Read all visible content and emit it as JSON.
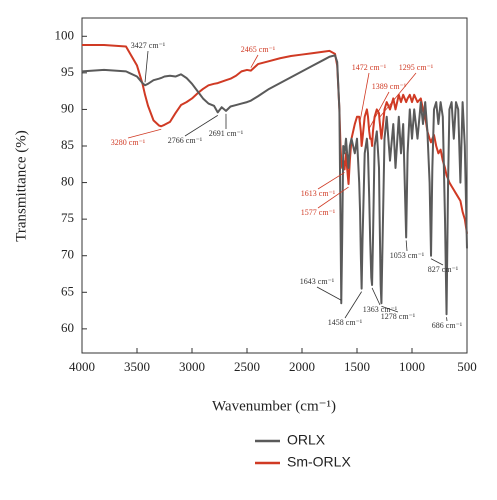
{
  "chart_data": {
    "type": "line",
    "x_label": "Wavenumber (cm⁻¹)",
    "y_label": "Transmittance (%)",
    "xlim": [
      4000,
      500
    ],
    "xticks": [
      4000,
      3500,
      3000,
      2500,
      2000,
      1500,
      1000,
      500
    ],
    "ylim": [
      56.7,
      102.5
    ],
    "yticks": [
      60,
      65,
      70,
      75,
      80,
      85,
      90,
      95,
      100
    ],
    "x": [
      4000,
      3800,
      3600,
      3500,
      3450,
      3427,
      3400,
      3350,
      3300,
      3280,
      3250,
      3200,
      3150,
      3100,
      3050,
      3000,
      2950,
      2900,
      2850,
      2800,
      2766,
      2730,
      2691,
      2650,
      2600,
      2550,
      2500,
      2465,
      2400,
      2300,
      2200,
      2100,
      2000,
      1900,
      1800,
      1750,
      1700,
      1680,
      1660,
      1650,
      1643,
      1635,
      1625,
      1613,
      1600,
      1590,
      1577,
      1565,
      1550,
      1520,
      1500,
      1480,
      1472,
      1465,
      1458,
      1450,
      1430,
      1410,
      1400,
      1389,
      1380,
      1370,
      1363,
      1355,
      1340,
      1320,
      1300,
      1295,
      1285,
      1278,
      1270,
      1250,
      1230,
      1200,
      1170,
      1150,
      1120,
      1100,
      1080,
      1053,
      1040,
      1020,
      1000,
      980,
      950,
      920,
      900,
      880,
      860,
      840,
      827,
      815,
      800,
      780,
      760,
      740,
      720,
      700,
      686,
      672,
      660,
      640,
      620,
      600,
      580,
      560,
      540,
      520,
      500
    ],
    "series": [
      {
        "name": "ORLX",
        "color": "#5a5a5a",
        "values": [
          95.2,
          95.4,
          95.2,
          94.5,
          93.6,
          93.3,
          93.5,
          94,
          94.2,
          94.3,
          94.5,
          94.6,
          94.5,
          94.8,
          94.3,
          93.5,
          92.5,
          91.5,
          90.8,
          90.5,
          89.6,
          90.3,
          89.8,
          90.4,
          90.6,
          90.8,
          91,
          91.2,
          91.8,
          92.8,
          93.6,
          94.4,
          95.2,
          96,
          96.8,
          97.2,
          97.4,
          96.5,
          90,
          75,
          63.5,
          72,
          85,
          84,
          86,
          84,
          82,
          85,
          86,
          84,
          86,
          80,
          76,
          70,
          65.5,
          72,
          84,
          86,
          84,
          78,
          72,
          67,
          66,
          72,
          85,
          87,
          82,
          76,
          66,
          63.5,
          70,
          86,
          89,
          83,
          88,
          82,
          89,
          84,
          88,
          72.5,
          84,
          90,
          86,
          90,
          86,
          91,
          88,
          91,
          87,
          80,
          70,
          82,
          90,
          91,
          88,
          91,
          89,
          75,
          62,
          80,
          90,
          91,
          86,
          91,
          90,
          80,
          91,
          85,
          71
        ]
      },
      {
        "name": "Sm-ORLX",
        "color": "#d03a24",
        "values": [
          98.8,
          98.8,
          98.6,
          96,
          93.5,
          92,
          90.5,
          88.5,
          87.8,
          87.7,
          87.9,
          88.3,
          89.5,
          90.6,
          91,
          91.5,
          92.2,
          92.8,
          93.3,
          93.5,
          93.6,
          93.8,
          94,
          94.2,
          94.6,
          95.2,
          95.4,
          95.3,
          96.2,
          96.6,
          97,
          97.3,
          97.5,
          97.7,
          97.9,
          98,
          97.6,
          96,
          90,
          85,
          83,
          82,
          83,
          81.8,
          84,
          82,
          79.8,
          83,
          86,
          88,
          89,
          89,
          88,
          87,
          85,
          86,
          89,
          90,
          89,
          87,
          86,
          86,
          85,
          87,
          89,
          90,
          89.5,
          88.5,
          87,
          86,
          87,
          90,
          91,
          90,
          91.5,
          90,
          92,
          91,
          92,
          91,
          91.5,
          92,
          91,
          92,
          91,
          91.5,
          90,
          89,
          87,
          86,
          85.5,
          86,
          86.5,
          85,
          84,
          84.5,
          83,
          82,
          81,
          80.5,
          80,
          79.5,
          79,
          78.5,
          78,
          77.5,
          76,
          75,
          73
        ]
      }
    ],
    "annotations": [
      {
        "label": "3427 cm⁻¹",
        "x": 3427,
        "y": 93.3,
        "color": "#333333"
      },
      {
        "label": "3280 cm⁻¹",
        "x": 3280,
        "y": 87.7,
        "color": "#d03a24"
      },
      {
        "label": "2766 cm⁻¹",
        "x": 2766,
        "y": 89.6,
        "color": "#333333"
      },
      {
        "label": "2691 cm⁻¹",
        "x": 2691,
        "y": 89.8,
        "color": "#333333"
      },
      {
        "label": "2465 cm⁻¹",
        "x": 2465,
        "y": 95.3,
        "color": "#d03a24"
      },
      {
        "label": "1472 cm⁻¹",
        "x": 1472,
        "y": 88,
        "color": "#d03a24"
      },
      {
        "label": "1389 cm⁻¹",
        "x": 1389,
        "y": 87,
        "color": "#d03a24"
      },
      {
        "label": "1295 cm⁻¹",
        "x": 1295,
        "y": 88.5,
        "color": "#d03a24"
      },
      {
        "label": "1613 cm⁻¹",
        "x": 1613,
        "y": 81.8,
        "color": "#d03a24"
      },
      {
        "label": "1577 cm⁻¹",
        "x": 1577,
        "y": 79.8,
        "color": "#d03a24"
      },
      {
        "label": "1053 cm⁻¹",
        "x": 1053,
        "y": 72.5,
        "color": "#333333"
      },
      {
        "label": "827 cm⁻¹",
        "x": 827,
        "y": 70,
        "color": "#333333"
      },
      {
        "label": "1643 cm⁻¹",
        "x": 1643,
        "y": 63.5,
        "color": "#333333"
      },
      {
        "label": "1458 cm⁻¹",
        "x": 1458,
        "y": 65.5,
        "color": "#333333"
      },
      {
        "label": "1363 cm⁻¹",
        "x": 1363,
        "y": 66,
        "color": "#333333"
      },
      {
        "label": "1278 cm⁻¹",
        "x": 1278,
        "y": 63.5,
        "color": "#333333"
      },
      {
        "label": "686 cm⁻¹",
        "x": 686,
        "y": 62,
        "color": "#333333"
      }
    ]
  }
}
